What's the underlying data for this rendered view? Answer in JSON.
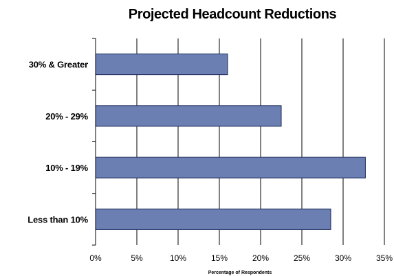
{
  "chart_data": {
    "type": "bar",
    "orientation": "horizontal",
    "title": "Projected Headcount Reductions",
    "xlabel": "Percentage of Respondents",
    "ylabel": "",
    "categories": [
      "30% & Greater",
      "20% - 29%",
      "10% - 19%",
      "Less than 10%"
    ],
    "values": [
      16,
      22.5,
      32.7,
      28.5
    ],
    "xlim": [
      0,
      35
    ],
    "x_ticks": [
      "0%",
      "5%",
      "10%",
      "15%",
      "20%",
      "25%",
      "30%",
      "35%"
    ],
    "grid": "vertical",
    "legend": "none",
    "bar_color": "#6b7fb3",
    "bar_edge_color": "#1a2a5a"
  }
}
